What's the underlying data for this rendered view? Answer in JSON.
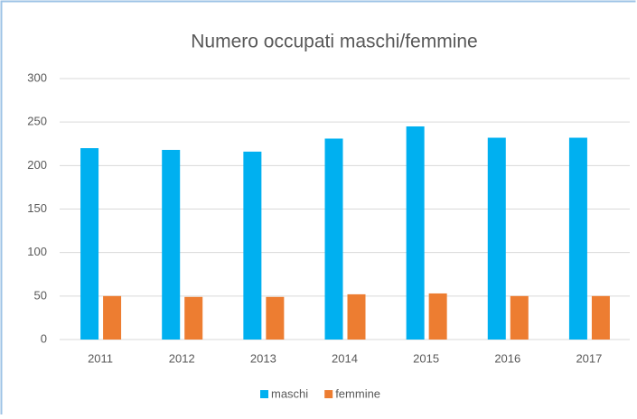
{
  "chart_data": {
    "type": "bar",
    "title": "Numero occupati maschi/femmine",
    "categories": [
      "2011",
      "2012",
      "2013",
      "2014",
      "2015",
      "2016",
      "2017"
    ],
    "series": [
      {
        "name": "maschi",
        "color": "#00b0f0",
        "values": [
          220,
          218,
          216,
          231,
          245,
          232,
          232
        ]
      },
      {
        "name": "femmine",
        "color": "#ed7d31",
        "values": [
          50,
          49,
          49,
          52,
          53,
          50,
          50
        ]
      }
    ],
    "ylim": [
      0,
      300
    ],
    "yticks": [
      0,
      50,
      100,
      150,
      200,
      250,
      300
    ],
    "grid": true,
    "legend": "bottom"
  }
}
